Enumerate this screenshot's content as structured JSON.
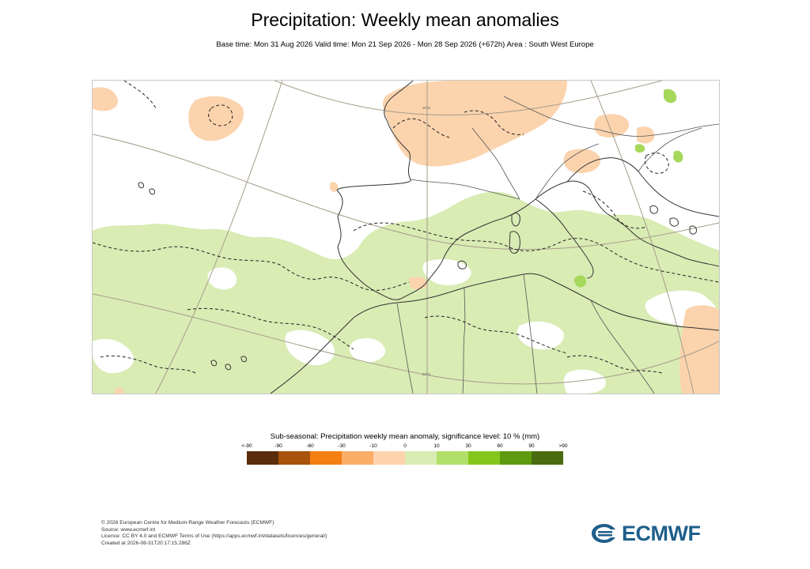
{
  "header": {
    "title": "Precipitation: Weekly mean anomalies",
    "subtitle": "Base time: Mon 31 Aug 2026 Valid time: Mon 21 Sep 2026 - Mon 28 Sep 2026 (+672h) Area : South West Europe"
  },
  "map": {
    "region": "South West Europe",
    "colors": {
      "positive_10_30": "#d9ecb4",
      "positive_30_60": "#a6d85c",
      "negative_10_30": "#fbd3ad",
      "coast": "#333333",
      "border": "#555555",
      "graticule": "#a59c8a"
    },
    "graticule_label": "30°N"
  },
  "legend": {
    "title": "Sub-seasonal: Precipitation weekly mean anomaly, significance level: 10 % (mm)",
    "ticks": [
      "<-90",
      "-90",
      "-60",
      "-30",
      "-10",
      "0",
      "10",
      "30",
      "60",
      "90",
      ">90"
    ],
    "colors": [
      "#5a2d0c",
      "#a8520c",
      "#f47f12",
      "#fbae68",
      "#fdd3ad",
      "#d9ecb4",
      "#b2df6a",
      "#84c61c",
      "#5e9a0f",
      "#4a6b10"
    ]
  },
  "footer": {
    "line1": "© 2026 European Centre for Medium-Range Weather Forecasts (ECMWF)",
    "line2": "Source: www.ecmwf.int",
    "line3": "Licence: CC BY 4.0 and ECMWF Terms of Use (https://apps.ecmwf.int/datasets/licences/general/)",
    "line4": "Created at 2026-08-31T20:17:15.286Z"
  },
  "logo": {
    "text": "ECMWF"
  }
}
